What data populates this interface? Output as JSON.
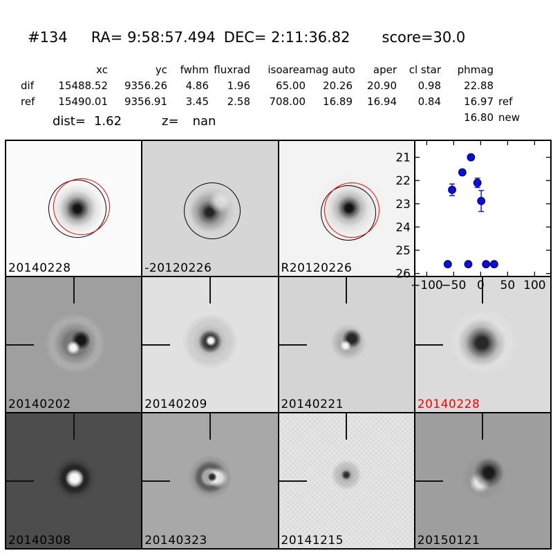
{
  "header": {
    "title": {
      "id": "#134",
      "ra": "RA= 9:58:57.494",
      "dec": "DEC= 2:11:36.82",
      "score": "score=30.0"
    },
    "table": {
      "columns": [
        "",
        "xc",
        "yc",
        "fwhm",
        "fluxrad",
        "isoarea",
        "mag auto",
        "aper",
        "cl star",
        "phmag",
        ""
      ],
      "rows": [
        {
          "cells": [
            "dif",
            "15488.52",
            "9356.26",
            "4.86",
            "1.96",
            "65.00",
            "20.26",
            "20.90",
            "0.98",
            "22.88",
            ""
          ]
        },
        {
          "cells": [
            "ref",
            "15490.01",
            "9356.91",
            "3.45",
            "2.58",
            "708.00",
            "16.89",
            "16.94",
            "0.84",
            "16.97",
            "ref"
          ]
        },
        {
          "cells": [
            "",
            "",
            "",
            "",
            "",
            "",
            "",
            "",
            "",
            "16.80",
            "new"
          ]
        }
      ]
    },
    "dist_label": "dist=",
    "dist_value": "1.62",
    "z_label": "z=",
    "z_value": "nan"
  },
  "cutouts": {
    "row1": [
      {
        "label": "20140228",
        "bg": "#fbfbfb",
        "label_color": "#000000"
      },
      {
        "label": "-20120226",
        "bg": "#d6d6d6",
        "label_color": "#000000"
      },
      {
        "label": "R20120226",
        "bg": "#f3f3f3",
        "label_color": "#000000"
      }
    ],
    "row2": [
      {
        "label": "20140202",
        "bg": "#9f9f9f",
        "label_color": "#000000"
      },
      {
        "label": "20140209",
        "bg": "#e1e1e1",
        "label_color": "#000000"
      },
      {
        "label": "20140221",
        "bg": "#d4d4d4",
        "label_color": "#000000"
      },
      {
        "label": "20140228",
        "bg": "#dbdbdb",
        "label_color": "#ff0000"
      }
    ],
    "row3": [
      {
        "label": "20140308",
        "bg": "#4d4d4d",
        "label_color": "#000000"
      },
      {
        "label": "20140323",
        "bg": "#a8a8a8",
        "label_color": "#000000"
      },
      {
        "label": "20141215",
        "bg": "#e7e7e7",
        "label_color": "#000000"
      },
      {
        "label": "20150121",
        "bg": "#9e9e9e",
        "label_color": "#000000"
      }
    ]
  },
  "annotations": {
    "aperture_circle_black": "#000000",
    "aperture_circle_red": "#ff0000"
  },
  "chart_data": {
    "type": "scatter",
    "title": "",
    "xlabel": "",
    "ylabel": "",
    "x": [
      -61,
      -53,
      -34,
      -23,
      -18,
      -6,
      1,
      10,
      25
    ],
    "mag": [
      25.6,
      22.4,
      21.65,
      25.6,
      21.0,
      22.1,
      22.88,
      25.6,
      25.6
    ],
    "err": [
      0.1,
      0.25,
      0.12,
      0.1,
      0,
      0.2,
      0.45,
      0.1,
      0.1
    ],
    "x_ticks": [
      -100,
      -50,
      0,
      50,
      100
    ],
    "x_tick_labels": [
      "−100",
      "−50",
      "0",
      "50",
      "100"
    ],
    "y_ticks": [
      21,
      22,
      23,
      24,
      25,
      26
    ],
    "y_tick_labels": [
      "21",
      "22",
      "23",
      "24",
      "25",
      "26"
    ],
    "xlim": [
      -121,
      129
    ],
    "ylim": [
      20.3,
      26.1
    ],
    "y_inverted": true,
    "grid": false,
    "legend": null,
    "marker_color": "#0d0ddf",
    "marker_edge": "#000060",
    "errorbar_color": "#2222ee"
  }
}
